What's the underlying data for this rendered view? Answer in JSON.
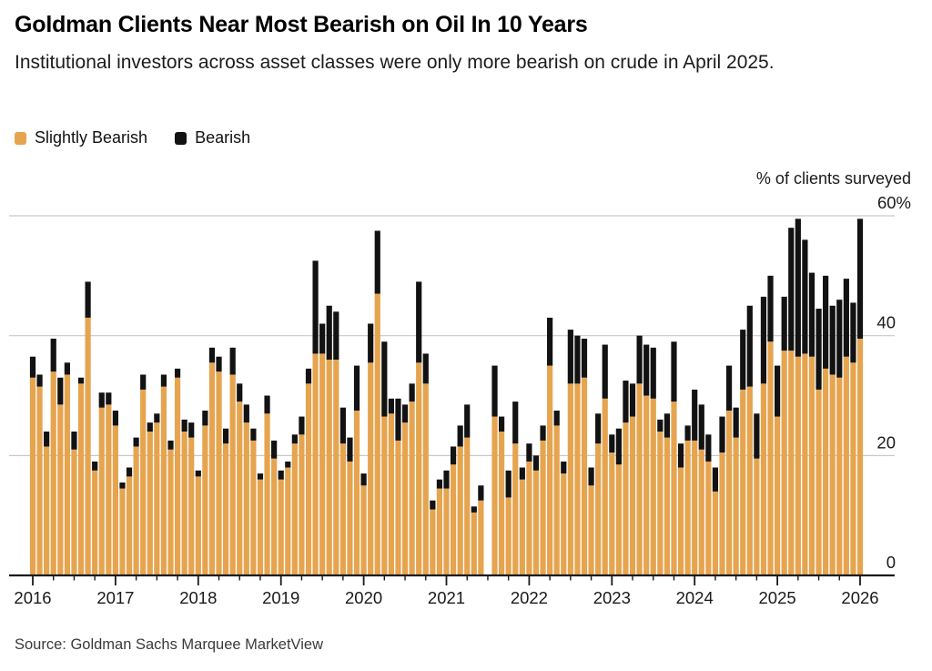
{
  "header": {
    "title": "Goldman Clients Near Most Bearish on Oil In 10 Years",
    "subtitle": "Institutional investors across asset classes were only more bearish on crude in April 2025."
  },
  "legend": {
    "items": [
      {
        "label": "Slightly Bearish",
        "color": "#E6A44F"
      },
      {
        "label": "Bearish",
        "color": "#121212"
      }
    ]
  },
  "source": {
    "text": "Source: Goldman Sachs Marquee MarketView"
  },
  "colors": {
    "slightly_bearish": "#E6A44F",
    "bearish": "#121212",
    "gridline": "#c9c9c9",
    "axis": "#1a1a1a",
    "label": "#1a1a1a",
    "background": "#ffffff"
  },
  "chart_data": {
    "type": "bar",
    "stacked": true,
    "title": "Goldman Clients Near Most Bearish on Oil In 10 Years",
    "ylabel": "% of clients surveyed",
    "ylim": [
      0,
      60
    ],
    "grid": true,
    "legend_position": "top-left",
    "y_ticks": [
      {
        "value": 60,
        "label": "60%"
      },
      {
        "value": 40,
        "label": "40"
      },
      {
        "value": 20,
        "label": "20"
      },
      {
        "value": 0,
        "label": "0"
      }
    ],
    "x_tick_years": [
      "2016",
      "2017",
      "2018",
      "2019",
      "2020",
      "2021",
      "2022",
      "2023",
      "2024",
      "2025",
      "2026"
    ],
    "x_start_month": "2016-01",
    "x_end_month": "2026-01",
    "note": "monthly stacked bars; July 2021 survey missing (gap)",
    "series": [
      {
        "name": "Slightly Bearish",
        "color": "#E6A44F",
        "values": [
          33,
          31.5,
          21.5,
          34,
          28.5,
          33.5,
          21,
          32,
          43,
          17.5,
          28,
          28.5,
          25,
          14.5,
          16.5,
          21.5,
          31,
          24,
          25.5,
          31.5,
          21,
          33,
          24,
          23,
          16.5,
          25,
          35.5,
          34,
          22,
          33.5,
          29,
          25.5,
          22.5,
          16,
          27,
          19.5,
          16,
          18,
          22,
          23.5,
          32,
          37,
          37,
          36,
          36,
          22,
          19,
          27.5,
          15,
          35.5,
          47,
          26.5,
          27,
          22.5,
          25.5,
          29,
          35.5,
          32,
          11,
          14.5,
          14.5,
          18.5,
          21.5,
          23,
          10.5,
          12.5,
          null,
          26.5,
          24,
          13,
          22,
          16,
          19,
          17.5,
          22.5,
          35,
          25,
          17,
          32,
          32,
          33,
          15,
          22,
          29.5,
          20.5,
          18.5,
          25.5,
          26.5,
          32,
          30,
          29.5,
          24,
          23,
          29,
          18,
          22.5,
          22.5,
          21,
          19,
          14,
          20.5,
          27.5,
          23,
          31,
          31.5,
          19.5,
          32,
          39,
          26.5,
          37.5,
          37.5,
          36.5,
          37,
          36.5,
          31,
          34.5,
          33.5,
          33,
          36.5,
          35.5,
          39.5
        ]
      },
      {
        "name": "Bearish",
        "color": "#121212",
        "values": [
          3.5,
          2,
          2.5,
          5.5,
          4.5,
          2,
          3,
          1,
          6,
          1.5,
          2.5,
          2,
          2.5,
          1,
          1.5,
          1.5,
          2.5,
          1.5,
          1.5,
          2,
          1.5,
          1.5,
          2,
          2.5,
          1,
          2.5,
          2.5,
          2.5,
          2.5,
          4.5,
          3,
          3,
          2,
          1,
          3,
          3,
          1.5,
          1,
          1.5,
          3,
          2.5,
          15.5,
          5,
          9,
          8,
          6,
          4,
          7.5,
          2,
          6.5,
          10.5,
          12.5,
          2.5,
          7,
          3,
          3,
          13.5,
          5,
          1.5,
          1.5,
          3,
          3,
          3.5,
          5.5,
          1,
          2.5,
          null,
          8.5,
          2.5,
          4.5,
          7,
          2,
          3,
          2.5,
          2.5,
          8,
          2.5,
          2,
          9,
          8,
          6.5,
          3,
          5,
          9,
          3,
          6,
          7,
          5.5,
          8,
          8.5,
          8.5,
          2,
          4,
          10,
          4,
          2.5,
          8.5,
          7.5,
          4.5,
          4,
          6,
          7.5,
          5,
          10,
          13.5,
          7.5,
          14.5,
          11,
          8.5,
          9,
          20.5,
          23,
          19,
          14,
          13.5,
          15.5,
          11.5,
          13,
          13,
          10,
          20
        ]
      }
    ]
  }
}
